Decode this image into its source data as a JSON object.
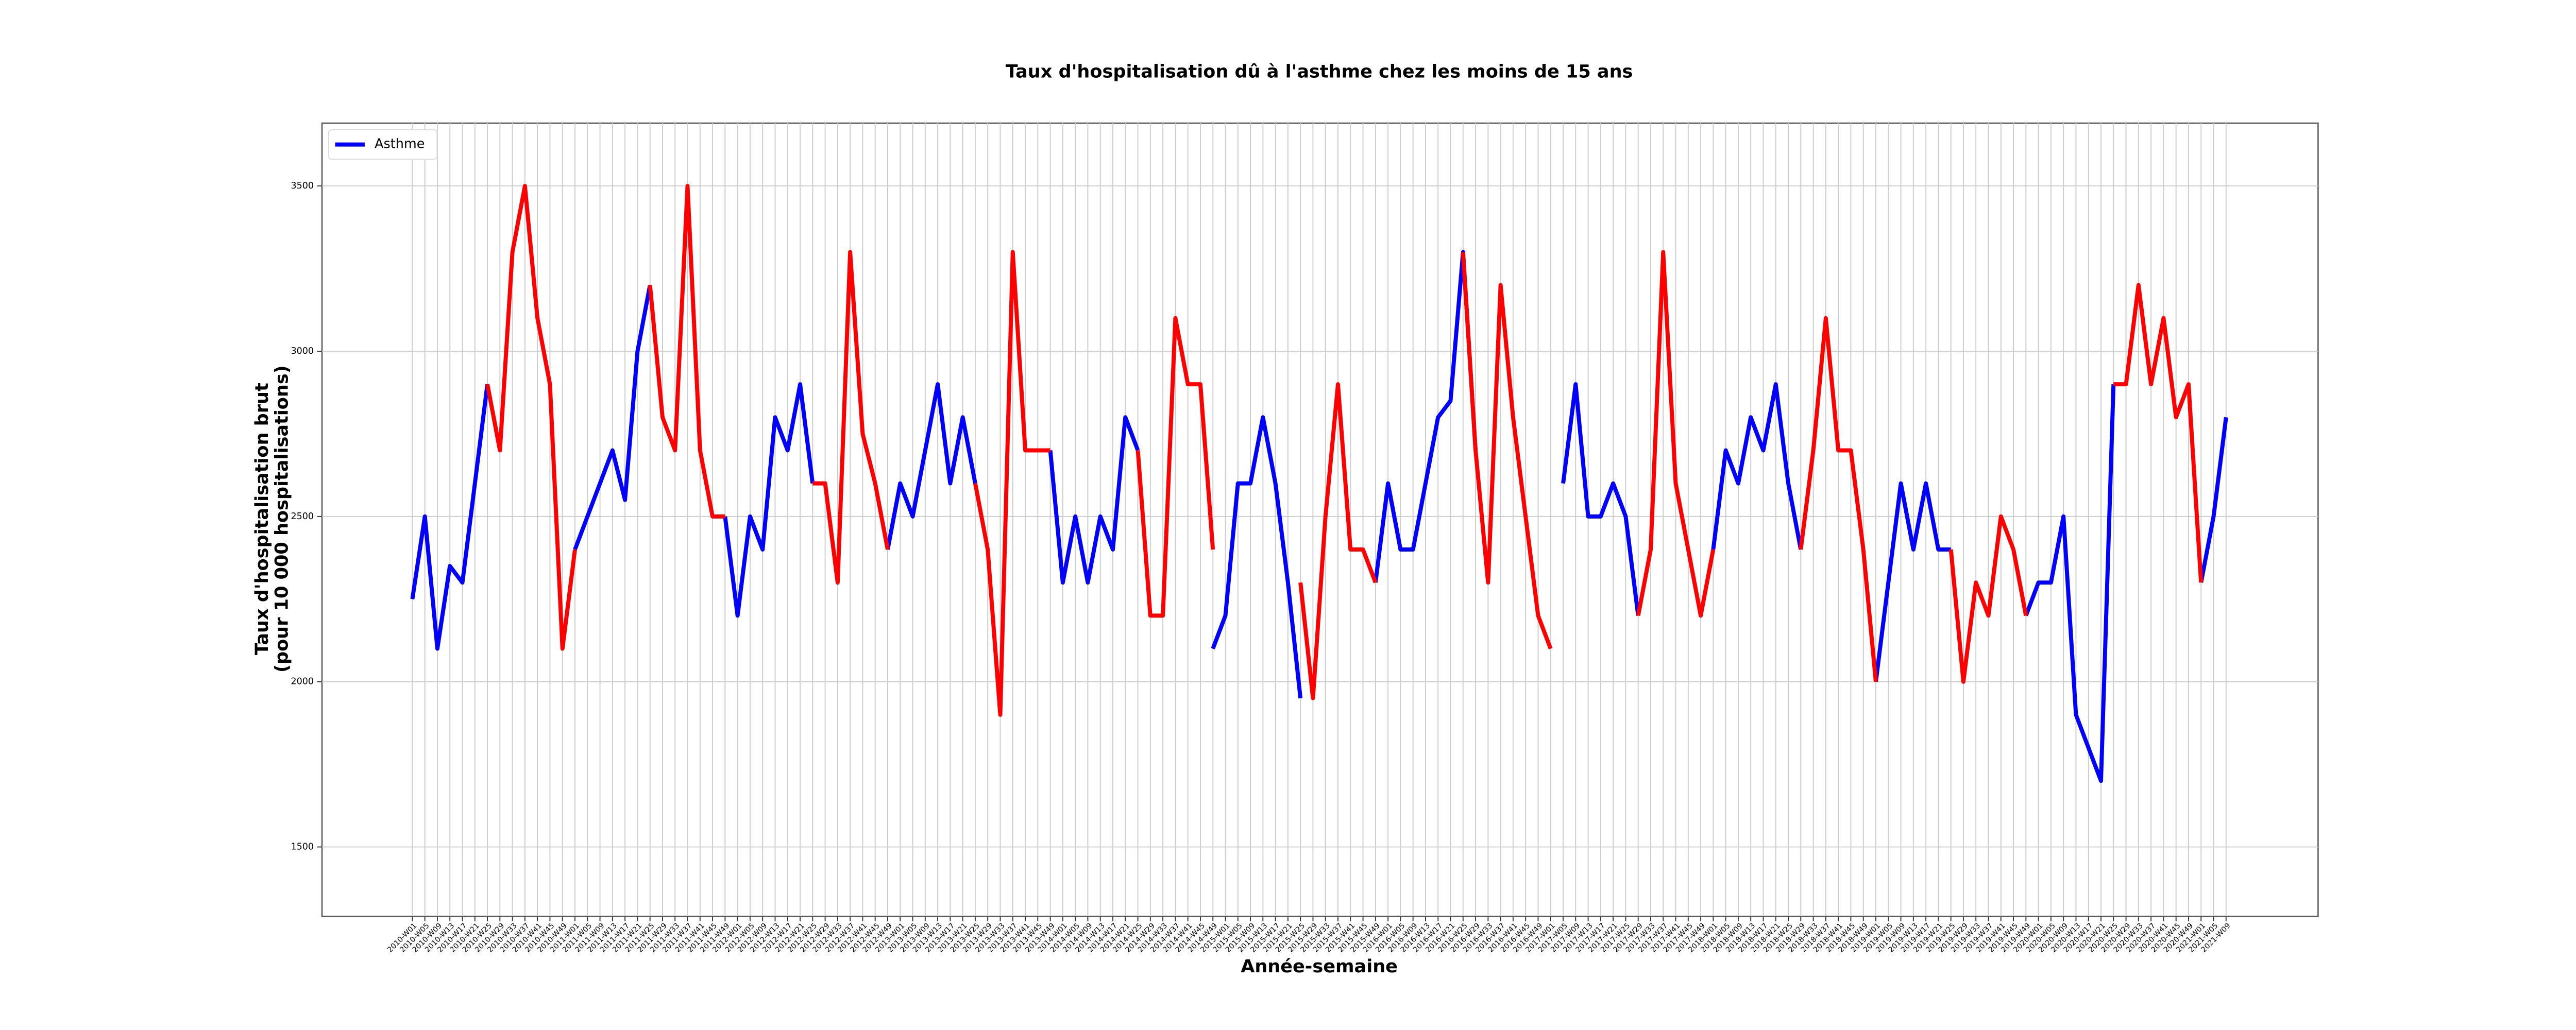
{
  "chart_data": {
    "type": "line",
    "title": "Taux d'hospitalisation dû à l'asthme chez les moins de 15 ans",
    "xlabel": "Année-semaine",
    "ylabel": [
      "Taux d'hospitalisation brut",
      "(pour 10 000 hospitalisations)"
    ],
    "categories": [
      "2010-W01",
      "2010-W05",
      "2010-W09",
      "2010-W13",
      "2010-W17",
      "2010-W21",
      "2010-W25",
      "2010-W29",
      "2010-W33",
      "2010-W37",
      "2010-W41",
      "2010-W45",
      "2010-W49",
      "2011-W01",
      "2011-W05",
      "2011-W09",
      "2011-W13",
      "2011-W17",
      "2011-W21",
      "2011-W25",
      "2011-W29",
      "2011-W33",
      "2011-W37",
      "2011-W41",
      "2011-W45",
      "2011-W49",
      "2012-W01",
      "2012-W05",
      "2012-W09",
      "2012-W13",
      "2012-W17",
      "2012-W21",
      "2012-W25",
      "2012-W29",
      "2012-W33",
      "2012-W37",
      "2012-W41",
      "2012-W45",
      "2012-W49",
      "2013-W01",
      "2013-W05",
      "2013-W09",
      "2013-W13",
      "2013-W17",
      "2013-W21",
      "2013-W25",
      "2013-W29",
      "2013-W33",
      "2013-W37",
      "2013-W41",
      "2013-W45",
      "2013-W49",
      "2014-W01",
      "2014-W05",
      "2014-W09",
      "2014-W13",
      "2014-W17",
      "2014-W21",
      "2014-W25",
      "2014-W29",
      "2014-W33",
      "2014-W37",
      "2014-W41",
      "2014-W45",
      "2014-W49",
      "2015-W01",
      "2015-W05",
      "2015-W09",
      "2015-W13",
      "2015-W17",
      "2015-W21",
      "2015-W25",
      "2015-W29",
      "2015-W33",
      "2015-W37",
      "2015-W41",
      "2015-W45",
      "2015-W49",
      "2016-W01",
      "2016-W05",
      "2016-W09",
      "2016-W13",
      "2016-W17",
      "2016-W21",
      "2016-W25",
      "2016-W29",
      "2016-W33",
      "2016-W37",
      "2016-W41",
      "2016-W45",
      "2016-W49",
      "2017-W01",
      "2017-W05",
      "2017-W09",
      "2017-W13",
      "2017-W17",
      "2017-W21",
      "2017-W25",
      "2017-W29",
      "2017-W33",
      "2017-W37",
      "2017-W41",
      "2017-W45",
      "2017-W49",
      "2018-W01",
      "2018-W05",
      "2018-W09",
      "2018-W13",
      "2018-W17",
      "2018-W21",
      "2018-W25",
      "2018-W29",
      "2018-W33",
      "2018-W37",
      "2018-W41",
      "2018-W45",
      "2018-W49",
      "2019-W01",
      "2019-W05",
      "2019-W09",
      "2019-W13",
      "2019-W17",
      "2019-W21",
      "2019-W25",
      "2019-W29",
      "2019-W33",
      "2019-W37",
      "2019-W41",
      "2019-W45",
      "2019-W49",
      "2020-W01",
      "2020-W05",
      "2020-W09",
      "2020-W13",
      "2020-W17",
      "2020-W21",
      "2020-W25",
      "2020-W29",
      "2020-W33",
      "2020-W37",
      "2020-W41",
      "2020-W45",
      "2020-W49",
      "2021-W01",
      "2021-W05",
      "2021-W09"
    ],
    "series": [
      {
        "name": "Asthme",
        "color": "#0000ff",
        "values": [
          2250,
          2500,
          2100,
          2350,
          2300,
          2600,
          2900,
          null,
          null,
          null,
          null,
          null,
          null,
          2400,
          2500,
          2600,
          2700,
          2550,
          3000,
          3200,
          null,
          null,
          null,
          null,
          null,
          2500,
          2200,
          2500,
          2400,
          2800,
          2700,
          2900,
          2600,
          null,
          null,
          null,
          null,
          null,
          2400,
          2600,
          2500,
          2700,
          2900,
          2600,
          2800,
          2600,
          null,
          null,
          null,
          null,
          null,
          2700,
          2300,
          2500,
          2300,
          2500,
          2400,
          2800,
          2700,
          null,
          null,
          null,
          null,
          null,
          2100,
          2200,
          2600,
          2600,
          2800,
          2600,
          2300,
          1950,
          null,
          null,
          null,
          null,
          null,
          2300,
          2600,
          2400,
          2400,
          2600,
          2800,
          2850,
          3300,
          2700,
          null,
          null,
          null,
          null,
          null,
          null,
          2600,
          2900,
          2500,
          2500,
          2600,
          2500,
          2200,
          null,
          null,
          null,
          null,
          null,
          2400,
          2700,
          2600,
          2800,
          2700,
          2900,
          2600,
          2400,
          null,
          null,
          null,
          null,
          null,
          2000,
          2300,
          2600,
          2400,
          2600,
          2400,
          2400,
          null,
          null,
          null,
          null,
          null,
          2200,
          2300,
          2300,
          2500,
          1900,
          1800,
          1700,
          2900,
          null,
          null,
          null,
          null,
          null,
          null,
          2300,
          2500,
          2800
        ]
      },
      {
        "color": "#ff0000",
        "values": [
          null,
          null,
          null,
          null,
          null,
          null,
          2900,
          2700,
          3300,
          3500,
          3100,
          2900,
          2100,
          2400,
          null,
          null,
          null,
          null,
          null,
          3200,
          2800,
          2700,
          3500,
          2700,
          2500,
          2500,
          null,
          null,
          null,
          null,
          null,
          null,
          2600,
          2600,
          2300,
          3300,
          2750,
          2600,
          2400,
          null,
          null,
          null,
          null,
          null,
          null,
          2600,
          2400,
          1900,
          3300,
          2700,
          2700,
          2700,
          null,
          null,
          null,
          null,
          null,
          null,
          2700,
          2200,
          2200,
          3100,
          2900,
          2900,
          2400,
          null,
          null,
          null,
          null,
          null,
          null,
          2300,
          1950,
          2500,
          2900,
          2400,
          2400,
          2300,
          null,
          null,
          null,
          null,
          null,
          null,
          3300,
          2700,
          2300,
          3200,
          2800,
          2500,
          2200,
          2100,
          null,
          null,
          null,
          null,
          null,
          null,
          2200,
          2400,
          3300,
          2600,
          2400,
          2200,
          2400,
          null,
          null,
          null,
          null,
          null,
          null,
          2400,
          2700,
          3100,
          2700,
          2700,
          2400,
          2000,
          null,
          null,
          null,
          null,
          null,
          2400,
          2000,
          2300,
          2200,
          2500,
          2400,
          2200,
          null,
          null,
          null,
          null,
          null,
          null,
          2900,
          2900,
          3200,
          2900,
          3100,
          2800,
          2900,
          2300,
          null,
          null
        ]
      }
    ],
    "ylim": [
      1290,
      3690
    ],
    "yticks": [
      1500,
      2000,
      2500,
      3000,
      3500
    ],
    "grid": true,
    "legend": "upper left",
    "line_width": 2.5
  }
}
